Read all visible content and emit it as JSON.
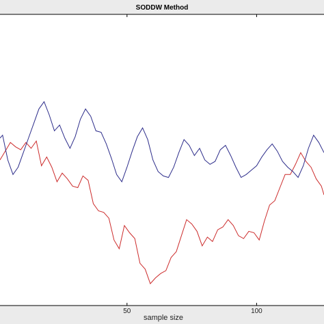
{
  "chart_data": {
    "type": "line",
    "title": "SODDW Method",
    "xlabel": "sample size",
    "ylabel": "",
    "xlim": [
      1,
      126
    ],
    "x_ticks": [
      50,
      100
    ],
    "grid": false,
    "legend": "none",
    "series": [
      {
        "color": "#cc2b2b",
        "x": [
          1,
          3,
          5,
          7,
          9,
          11,
          13,
          15,
          17,
          19,
          21,
          23,
          25,
          27,
          29,
          31,
          33,
          35,
          37,
          39,
          41,
          43,
          45,
          47,
          49,
          51,
          53,
          55,
          57,
          59,
          61,
          63,
          65,
          67,
          69,
          71,
          73,
          75,
          77,
          79,
          81,
          83,
          85,
          87,
          89,
          91,
          93,
          95,
          97,
          99,
          101,
          103,
          105,
          107,
          109,
          111,
          113,
          115,
          117,
          119,
          121,
          123,
          125,
          126
        ],
        "values": [
          -0.2,
          -0.08,
          0.04,
          -0.02,
          -0.06,
          0.04,
          -0.04,
          0.06,
          -0.28,
          -0.16,
          -0.3,
          -0.5,
          -0.38,
          -0.46,
          -0.56,
          -0.58,
          -0.42,
          -0.48,
          -0.8,
          -0.9,
          -0.92,
          -1.0,
          -1.3,
          -1.42,
          -1.1,
          -1.2,
          -1.28,
          -1.62,
          -1.7,
          -1.9,
          -1.82,
          -1.76,
          -1.72,
          -1.54,
          -1.46,
          -1.24,
          -1.02,
          -1.08,
          -1.18,
          -1.38,
          -1.26,
          -1.32,
          -1.16,
          -1.12,
          -1.02,
          -1.1,
          -1.24,
          -1.28,
          -1.18,
          -1.2,
          -1.3,
          -1.04,
          -0.82,
          -0.76,
          -0.58,
          -0.4,
          -0.4,
          -0.26,
          -0.1,
          -0.22,
          -0.3,
          -0.46,
          -0.56,
          -0.68
        ]
      },
      {
        "color": "#2c2c8a",
        "x": [
          1,
          2,
          4,
          6,
          8,
          10,
          12,
          14,
          16,
          18,
          20,
          22,
          24,
          26,
          28,
          30,
          32,
          34,
          36,
          38,
          40,
          42,
          44,
          46,
          48,
          50,
          52,
          54,
          56,
          58,
          60,
          62,
          64,
          66,
          68,
          70,
          72,
          74,
          76,
          78,
          80,
          82,
          84,
          86,
          88,
          90,
          92,
          94,
          96,
          98,
          100,
          102,
          104,
          106,
          108,
          110,
          112,
          114,
          116,
          118,
          120,
          122,
          124,
          126
        ],
        "values": [
          0.1,
          0.14,
          -0.2,
          -0.4,
          -0.3,
          -0.1,
          0.1,
          0.3,
          0.5,
          0.6,
          0.42,
          0.2,
          0.28,
          0.1,
          -0.04,
          0.12,
          0.36,
          0.5,
          0.4,
          0.2,
          0.18,
          0.02,
          -0.18,
          -0.4,
          -0.5,
          -0.3,
          -0.08,
          0.12,
          0.24,
          0.08,
          -0.2,
          -0.36,
          -0.42,
          -0.44,
          -0.3,
          -0.1,
          0.08,
          0.0,
          -0.14,
          -0.04,
          -0.2,
          -0.26,
          -0.22,
          -0.06,
          0.0,
          -0.14,
          -0.3,
          -0.44,
          -0.4,
          -0.34,
          -0.28,
          -0.16,
          -0.06,
          0.02,
          -0.08,
          -0.22,
          -0.3,
          -0.36,
          -0.44,
          -0.28,
          -0.04,
          0.14,
          0.04,
          -0.1
        ]
      }
    ]
  }
}
